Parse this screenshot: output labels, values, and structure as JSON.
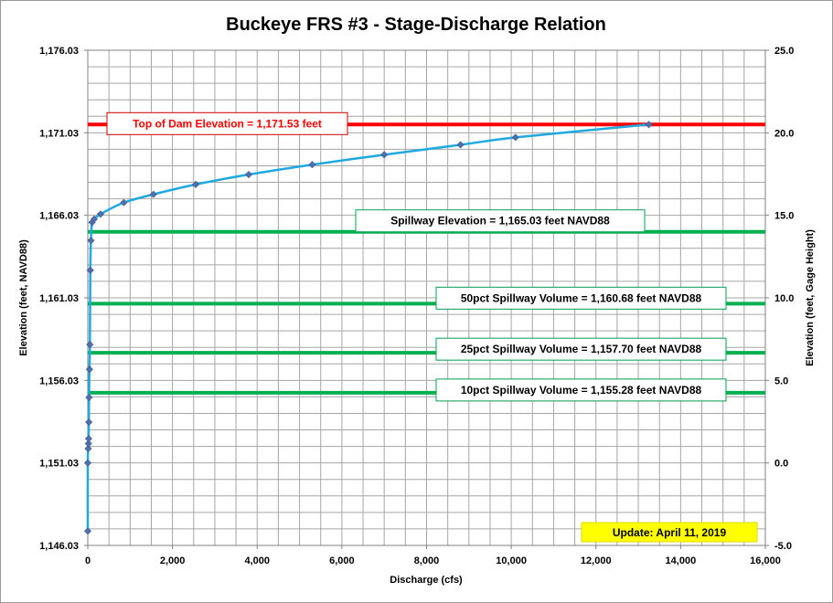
{
  "chart_data": {
    "type": "scatter",
    "title": "Buckeye FRS #3 - Stage-Discharge Relation",
    "xlabel": "Discharge  (cfs)",
    "ylabel": "Elevation  (feet, NAVD88)",
    "y2label": "Elevation  (feet, Gage Height)",
    "xlim": [
      0,
      16000
    ],
    "ylim": [
      1146.03,
      1176.03
    ],
    "y2lim": [
      -5.0,
      25.0
    ],
    "x_ticks": [
      0,
      2000,
      4000,
      6000,
      8000,
      10000,
      12000,
      14000,
      16000
    ],
    "x_tick_labels": [
      "0",
      "2,000",
      "4,000",
      "6,000",
      "8,000",
      "10,000",
      "12,000",
      "14,000",
      "16,000"
    ],
    "y_ticks": [
      1146.03,
      1151.03,
      1156.03,
      1161.03,
      1166.03,
      1171.03,
      1176.03
    ],
    "y_tick_labels": [
      "1,146.03",
      "1,151.03",
      "1,156.03",
      "1,161.03",
      "1,166.03",
      "1,171.03",
      "1,176.03"
    ],
    "y2_ticks": [
      -5,
      0,
      5,
      10,
      15,
      20,
      25
    ],
    "y2_tick_labels": [
      "-5.0",
      "0.0",
      "5.0",
      "10.0",
      "15.0",
      "20.0",
      "25.0"
    ],
    "grid": true,
    "series": [
      {
        "color": "#1fa9e1",
        "marker_color": "#4f6fad",
        "points": [
          [
            0,
            1146.9
          ],
          [
            0,
            1151.03
          ],
          [
            10,
            1151.9
          ],
          [
            15,
            1152.2
          ],
          [
            20,
            1152.5
          ],
          [
            25,
            1153.5
          ],
          [
            30,
            1155.0
          ],
          [
            40,
            1156.7
          ],
          [
            50,
            1158.2
          ],
          [
            60,
            1162.7
          ],
          [
            75,
            1164.5
          ],
          [
            100,
            1165.6
          ],
          [
            150,
            1165.8
          ],
          [
            300,
            1166.1
          ],
          [
            850,
            1166.8
          ],
          [
            1550,
            1167.3
          ],
          [
            2550,
            1167.9
          ],
          [
            3800,
            1168.5
          ],
          [
            5300,
            1169.1
          ],
          [
            7000,
            1169.7
          ],
          [
            8800,
            1170.3
          ],
          [
            10100,
            1170.75
          ],
          [
            13250,
            1171.53
          ]
        ]
      }
    ],
    "reference_lines": [
      {
        "label": "Top of Dam Elevation = 1,171.53  feet",
        "elevation": 1171.53,
        "color": "#ff0000",
        "text_color": "#ff0000",
        "box_border": "#cc0000"
      },
      {
        "label": "Spillway Elevation = 1,165.03  feet NAVD88",
        "elevation": 1165.03,
        "color": "#00b050",
        "text_color": "#000000",
        "box_border": "#00a050"
      },
      {
        "label": "50pct Spillway Volume = 1,160.68  feet NAVD88",
        "elevation": 1160.68,
        "color": "#00b050",
        "text_color": "#000000",
        "box_border": "#00a050"
      },
      {
        "label": "25pct Spillway Volume = 1,157.70  feet NAVD88",
        "elevation": 1157.7,
        "color": "#00b050",
        "text_color": "#000000",
        "box_border": "#00a050"
      },
      {
        "label": "10pct Spillway Volume = 1,155.28  feet NAVD88",
        "elevation": 1155.28,
        "color": "#00b050",
        "text_color": "#000000",
        "box_border": "#00a050"
      }
    ],
    "annotation": {
      "text": "Update: April 11, 2019",
      "background": "#ffff00"
    }
  }
}
